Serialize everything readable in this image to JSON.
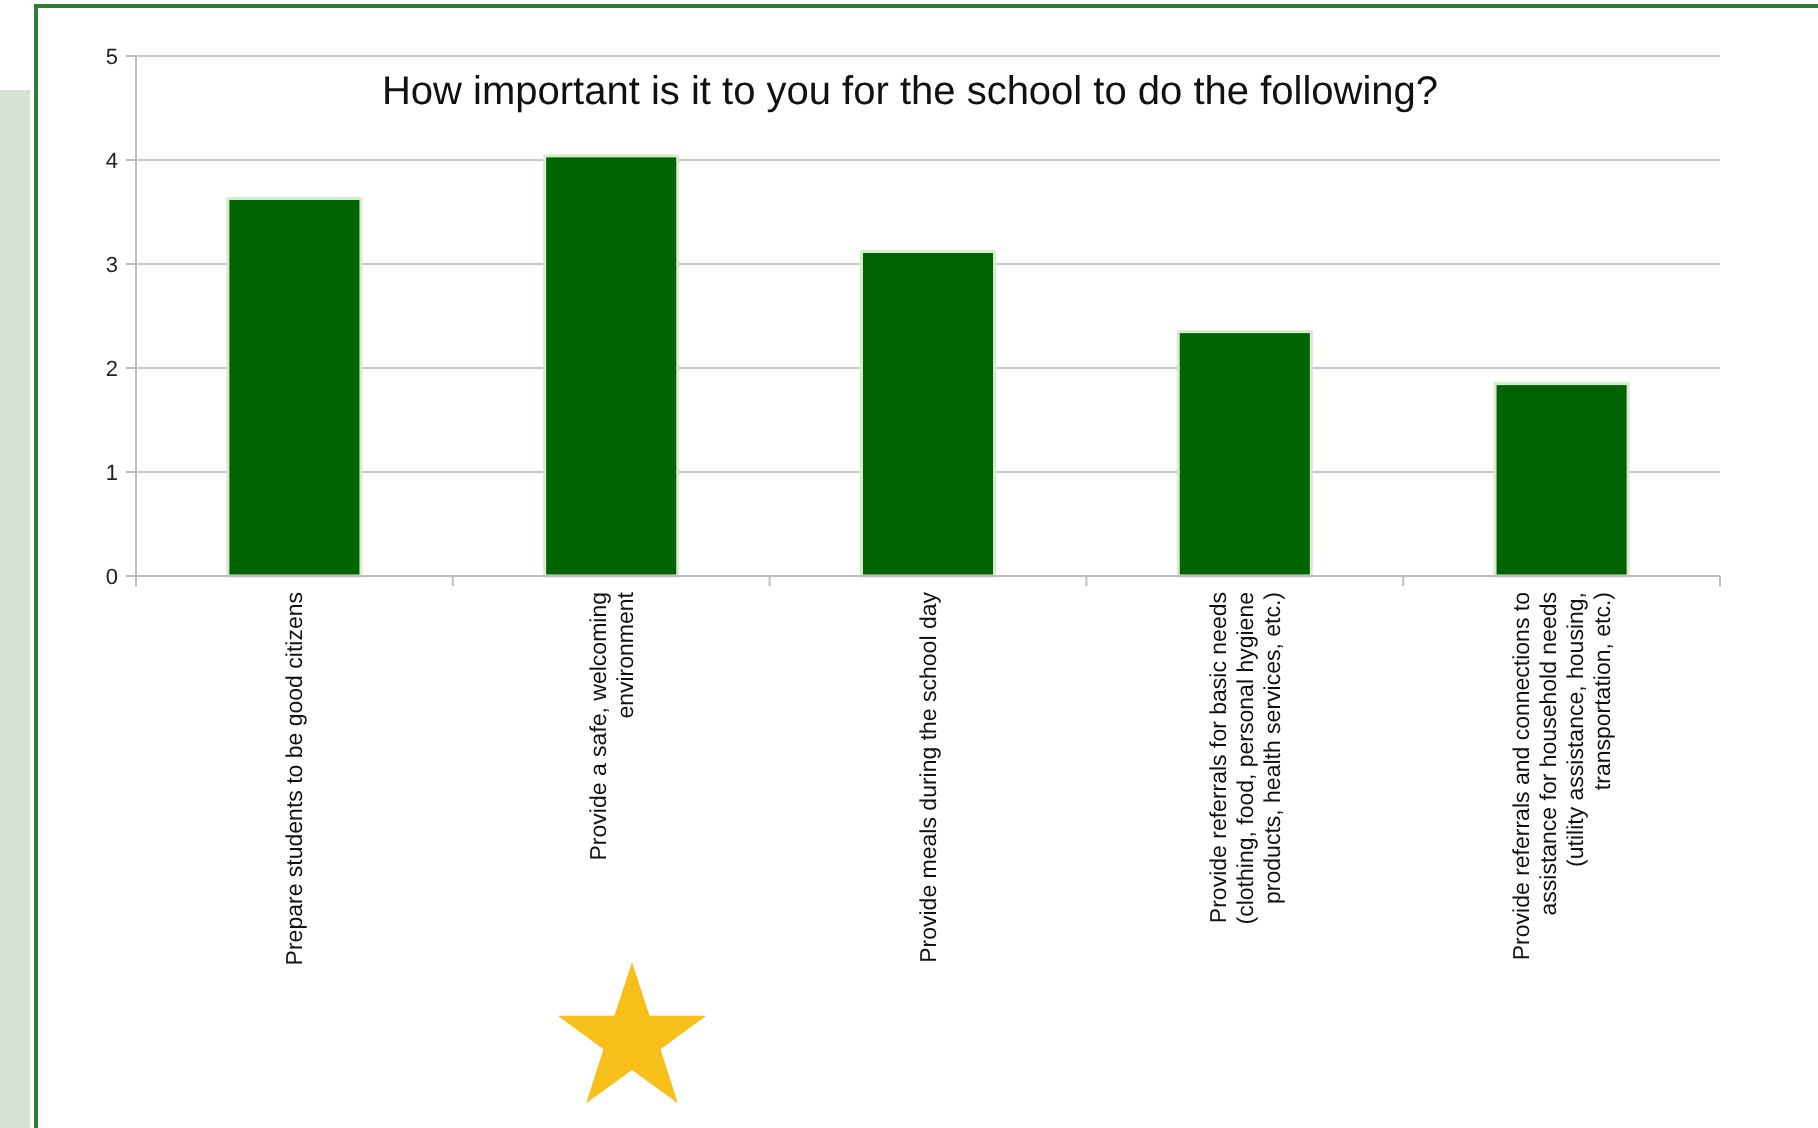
{
  "chart_data": {
    "type": "bar",
    "title": "How important is it to you for the school to do the following?",
    "categories": [
      "Prepare students to be good citizens",
      "Provide a safe, welcoming environment",
      "Provide meals during the school day",
      "Provide referrals for basic needs (clothing, food, personal hygiene products, health services, etc.)",
      "Provide referrals and connections to assistance for household needs (utility assistance, housing, transportation, etc.)"
    ],
    "values": [
      3.63,
      4.04,
      3.12,
      2.35,
      1.85
    ],
    "color": "#006400",
    "ylim": [
      0,
      5
    ],
    "yticks": [
      0,
      1,
      2,
      3,
      4,
      5
    ],
    "grid": "y"
  }
}
